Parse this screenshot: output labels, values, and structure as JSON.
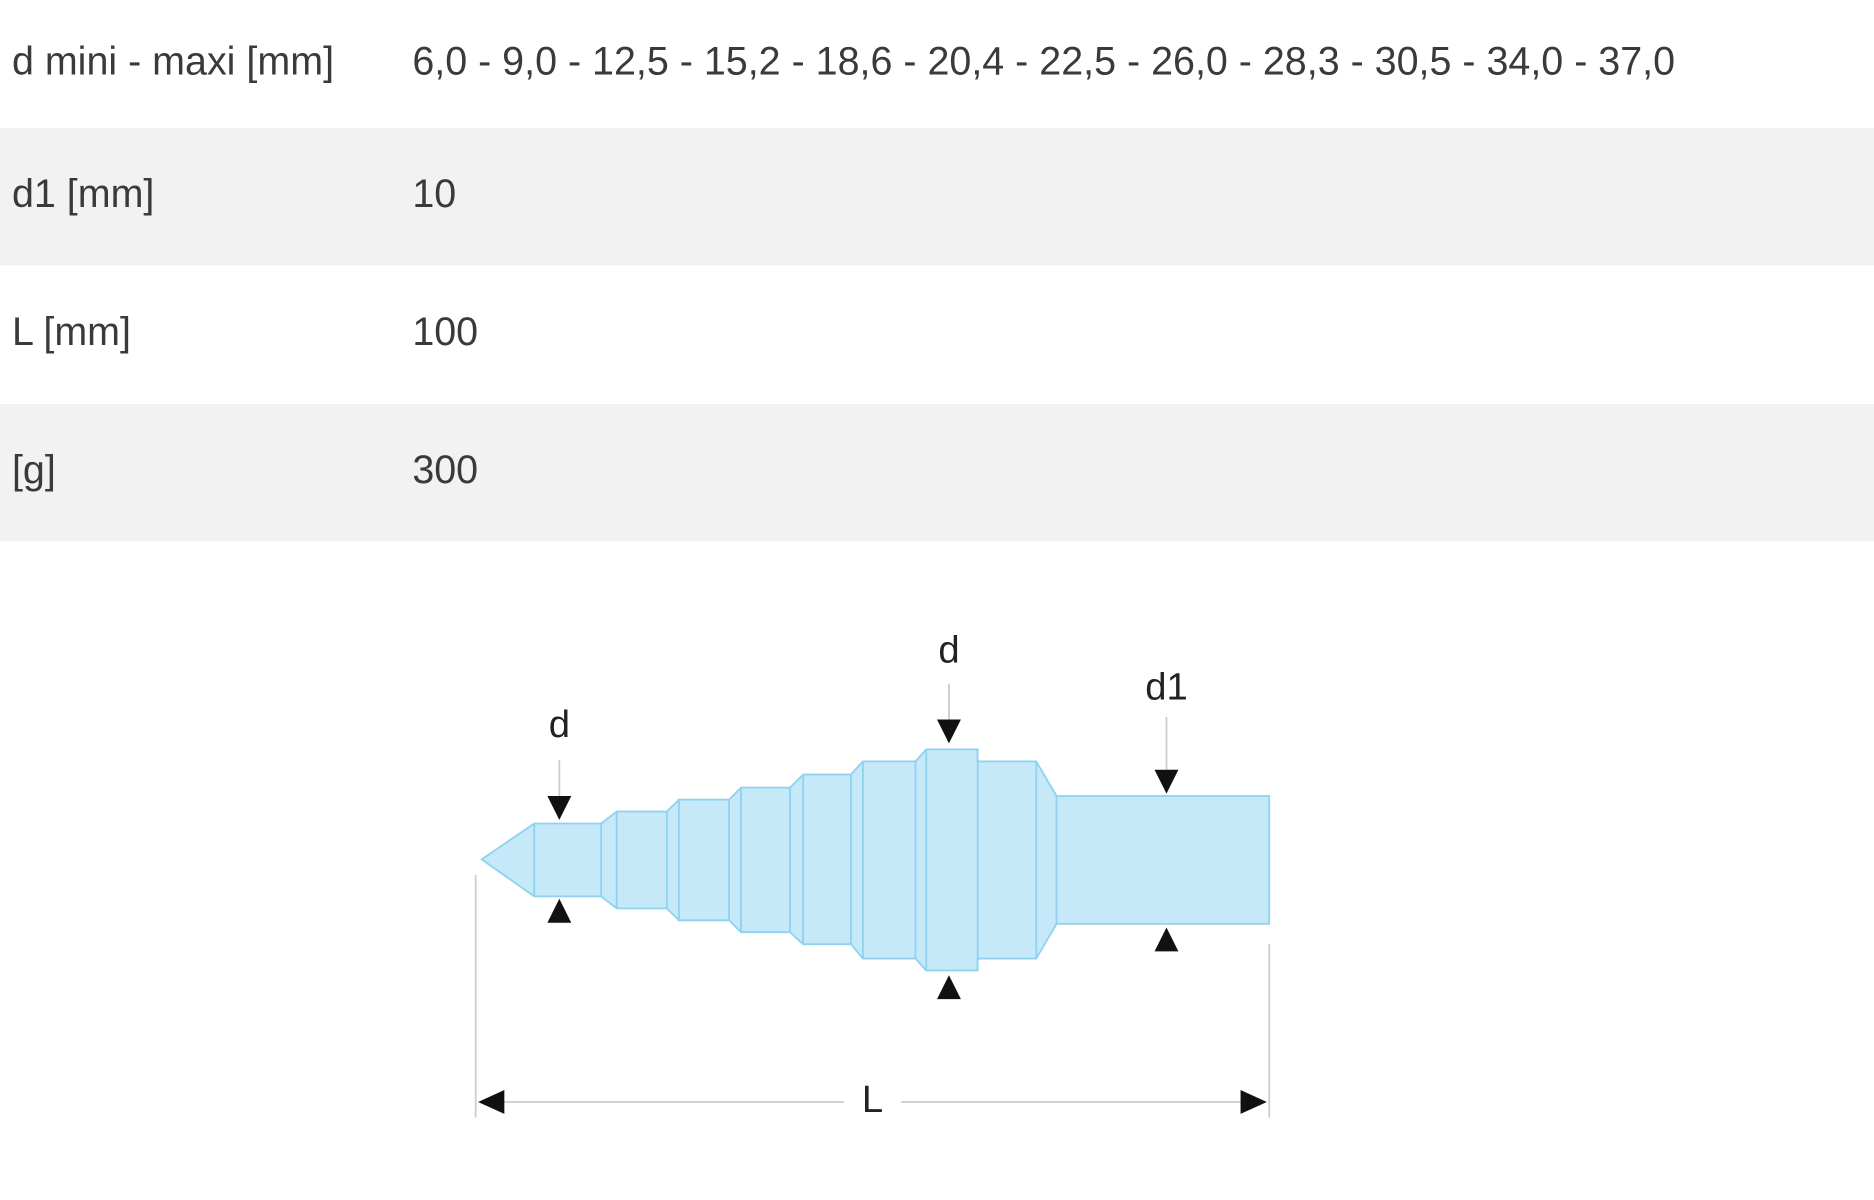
{
  "table": {
    "rows": [
      [
        "d mini - maxi [mm]",
        "6,0 - 9,0 - 12,5 - 15,2 - 18,6 - 20,4 - 22,5 - 26,0 - 28,3 - 30,5 - 34,0 - 37,0"
      ],
      [
        "d1 [mm]",
        "10"
      ],
      [
        "L [mm]",
        "100"
      ],
      [
        "[g]",
        "300"
      ]
    ]
  },
  "diagram": {
    "labels": [
      "d",
      "d",
      "d1",
      "L"
    ]
  }
}
